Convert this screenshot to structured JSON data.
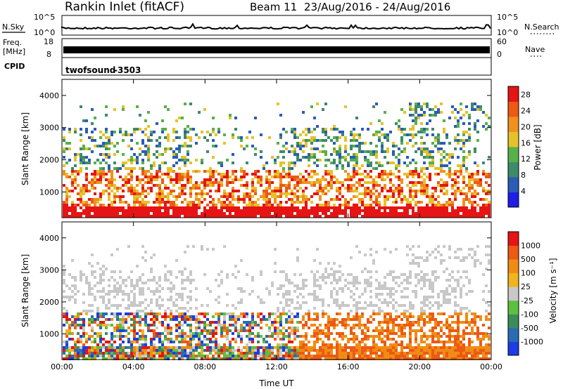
{
  "header": {
    "station": "Rankin Inlet (fitACF)",
    "beam": "Beam 11",
    "date_range": "23/Aug/2016 - 24/Aug/2016"
  },
  "noise_panel": {
    "left_label": "N.Sky",
    "left_ticks": [
      "10^5",
      "10^0"
    ],
    "right_label": "N.Search",
    "right_ticks": [
      "10^5",
      "10^0"
    ]
  },
  "freq_panel": {
    "left_label_line1": "Freq.",
    "left_label_line2": "[MHz]",
    "left_ticks": [
      "18",
      "8"
    ],
    "right_label": "Nave",
    "right_ticks": [
      "60",
      "0"
    ]
  },
  "cpid_panel": {
    "label": "CPID",
    "program": "twofsound",
    "cpid_value": "-3503"
  },
  "chart_data": [
    {
      "type": "heatmap",
      "name": "power",
      "ylabel": "Slant Range [km]",
      "y_ticks": [
        "1000",
        "2000",
        "3000",
        "4000"
      ],
      "ylim": [
        200,
        4500
      ],
      "x_ticks": [
        "00:00",
        "04:00",
        "08:00",
        "12:00",
        "16:00",
        "20:00",
        "00:00"
      ],
      "xlim_hours": [
        0,
        24
      ],
      "colorbar": {
        "label": "Power [dB]",
        "ticks": [
          "4",
          "8",
          "12",
          "16",
          "20",
          "24",
          "28"
        ],
        "range": [
          0,
          30
        ],
        "colors": [
          "#1e1ee6",
          "#2a5cb8",
          "#3f8a6a",
          "#58b04a",
          "#e6c22a",
          "#f0901e",
          "#ec5a14",
          "#e61414"
        ]
      }
    },
    {
      "type": "heatmap",
      "name": "velocity",
      "ylabel": "Slant Range [km]",
      "y_ticks": [
        "1000",
        "2000",
        "3000",
        "4000"
      ],
      "ylim": [
        200,
        4500
      ],
      "x_ticks": [
        "00:00",
        "04:00",
        "08:00",
        "12:00",
        "16:00",
        "20:00",
        "00:00"
      ],
      "xlim_hours": [
        0,
        24
      ],
      "xlabel": "Time UT",
      "colorbar": {
        "label": "Velocity [m s⁻¹]",
        "ticks": [
          "1000",
          "500",
          "100",
          "25",
          "-25",
          "-100",
          "-500",
          "-1000"
        ],
        "colors": [
          "#1e3ce6",
          "#2a6cb4",
          "#3c8c5a",
          "#5cc040",
          "#c8c8c8",
          "#f0b41e",
          "#f08c14",
          "#ec5a14",
          "#e61414"
        ]
      }
    }
  ]
}
